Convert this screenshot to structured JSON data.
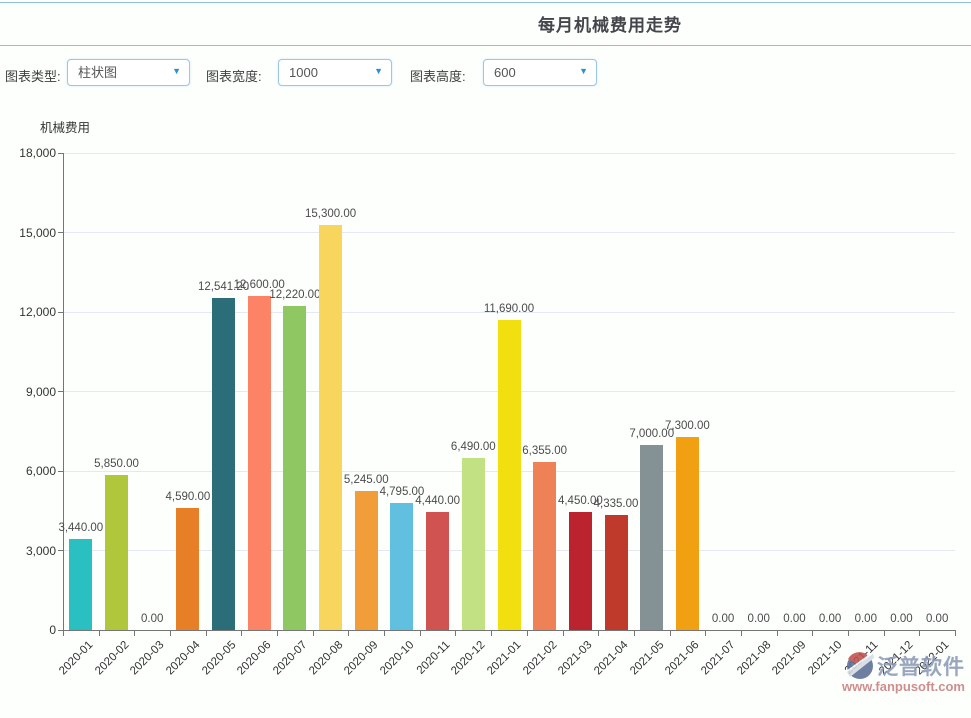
{
  "header": {
    "title": "每月机械费用走势"
  },
  "toolbar": {
    "chart_type_label": "图表类型:",
    "chart_type_value": "柱状图",
    "chart_width_label": "图表宽度:",
    "chart_width_value": "1000",
    "chart_height_label": "图表高度:",
    "chart_height_value": "600"
  },
  "icons": {
    "dropdown_caret": "▼"
  },
  "colors": {
    "accent_blue": "#2e8fd0",
    "divider_blue": "#8fbfe0",
    "axis": "#757575",
    "gridline": "#e4e8f3",
    "tick_label": "#333333",
    "value_label": "#4b4b4b",
    "watermark_blue": "#8d99b6",
    "watermark_red": "#ca7e7f"
  },
  "chart_data": {
    "type": "bar",
    "title": "每月机械费用走势",
    "ylabel": "机械费用",
    "xlabel": "",
    "ylim": [
      0,
      18000
    ],
    "ytick_interval": 3000,
    "ytick_labels": [
      "0",
      "3,000",
      "6,000",
      "9,000",
      "12,000",
      "15,000",
      "18,000"
    ],
    "grid": true,
    "legend": "none",
    "categories": [
      "2020-01",
      "2020-02",
      "2020-03",
      "2020-04",
      "2020-05",
      "2020-06",
      "2020-07",
      "2020-08",
      "2020-09",
      "2020-10",
      "2020-11",
      "2020-12",
      "2021-01",
      "2021-02",
      "2021-03",
      "2021-04",
      "2021-05",
      "2021-06",
      "2021-07",
      "2021-08",
      "2021-09",
      "2021-10",
      "2021-11",
      "2021-12",
      "2022-01"
    ],
    "values": [
      3440,
      5850,
      0,
      4590,
      12541.2,
      12600,
      12220,
      15300,
      5245,
      4795,
      4440,
      6490,
      11690,
      6355,
      4450,
      4335,
      7000,
      7300,
      0,
      0,
      0,
      0,
      0,
      0,
      0
    ],
    "value_labels": [
      "3,440.00",
      "5,850.00",
      "0.00",
      "4,590.00",
      "12,541.20",
      "12,600.00",
      "12,220.00",
      "15,300.00",
      "5,245.00",
      "4,795.00",
      "4,440.00",
      "6,490.00",
      "11,690.00",
      "6,355.00",
      "4,450.00",
      "4,335.00",
      "7,000.00",
      "7,300.00",
      "0.00",
      "0.00",
      "0.00",
      "0.00",
      "0.00",
      "0.00",
      "0.00"
    ],
    "bar_colors": [
      "#2abfc1",
      "#b1c73b",
      "#cccccc",
      "#e67f26",
      "#2b6d79",
      "#fc8365",
      "#8fc863",
      "#f8d65e",
      "#f09d3a",
      "#61bfe0",
      "#d05351",
      "#c2e182",
      "#f1df0f",
      "#ee8156",
      "#bb232f",
      "#c03a2c",
      "#849295",
      "#f1a011",
      "#cccccc",
      "#cccccc",
      "#cccccc",
      "#cccccc",
      "#cccccc",
      "#cccccc",
      "#cccccc"
    ]
  },
  "watermark": {
    "brand": "泛普软件",
    "url_text": "www.fanpusoft.com"
  }
}
